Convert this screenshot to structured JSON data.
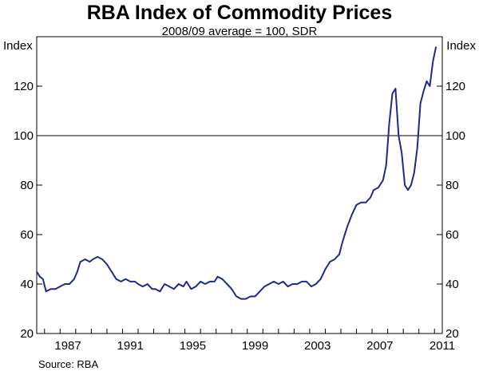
{
  "chart_data": {
    "type": "line",
    "title": "RBA Index of Commodity Prices",
    "subtitle": "2008/09 average = 100, SDR",
    "y_unit_left": "Index",
    "y_unit_right": "Index",
    "source": "Source: RBA",
    "ylim": [
      20,
      140
    ],
    "xlim": [
      1985.5,
      2011.5
    ],
    "y_ticks": [
      20,
      40,
      60,
      80,
      100,
      120
    ],
    "x_tick_labels": [
      "1987",
      "1991",
      "1995",
      "1999",
      "2003",
      "2007",
      "2011"
    ],
    "reference_line": 100,
    "series": [
      {
        "name": "RBA Index of Commodity Prices",
        "color": "#1f2a8c",
        "x": [
          1985.5,
          1985.7,
          1985.9,
          1986.1,
          1986.4,
          1986.7,
          1987.0,
          1987.3,
          1987.6,
          1987.9,
          1988.1,
          1988.3,
          1988.6,
          1988.9,
          1989.1,
          1989.4,
          1989.7,
          1990.0,
          1990.3,
          1990.6,
          1990.9,
          1991.2,
          1991.5,
          1991.8,
          1992.0,
          1992.3,
          1992.6,
          1992.9,
          1993.1,
          1993.4,
          1993.7,
          1994.0,
          1994.3,
          1994.6,
          1994.9,
          1995.1,
          1995.4,
          1995.7,
          1996.0,
          1996.3,
          1996.6,
          1996.9,
          1997.1,
          1997.4,
          1997.7,
          1998.0,
          1998.3,
          1998.6,
          1998.9,
          1999.2,
          1999.5,
          1999.8,
          2000.1,
          2000.4,
          2000.7,
          2001.0,
          2001.3,
          2001.6,
          2001.9,
          2002.2,
          2002.5,
          2002.8,
          2003.1,
          2003.4,
          2003.7,
          2004.0,
          2004.3,
          2004.6,
          2004.9,
          2005.1,
          2005.4,
          2005.7,
          2006.0,
          2006.3,
          2006.6,
          2006.9,
          2007.1,
          2007.4,
          2007.7,
          2007.9,
          2008.1,
          2008.3,
          2008.5,
          2008.7,
          2008.9,
          2009.1,
          2009.3,
          2009.5,
          2009.7,
          2009.9,
          2010.1,
          2010.3,
          2010.5,
          2010.7,
          2010.9,
          2011.1
        ],
        "values": [
          45,
          43,
          42,
          37,
          38,
          38,
          39,
          40,
          40,
          42,
          45,
          49,
          50,
          49,
          50,
          51,
          50,
          48,
          45,
          42,
          41,
          42,
          41,
          41,
          40,
          39,
          40,
          38,
          38,
          37,
          40,
          39,
          38,
          40,
          39,
          41,
          38,
          39,
          41,
          40,
          41,
          41,
          43,
          42,
          40,
          38,
          35,
          34,
          34,
          35,
          35,
          37,
          39,
          40,
          41,
          40,
          41,
          39,
          40,
          40,
          41,
          41,
          39,
          40,
          42,
          46,
          49,
          50,
          52,
          57,
          63,
          68,
          72,
          73,
          73,
          75,
          78,
          79,
          82,
          88,
          105,
          117,
          119,
          100,
          93,
          80,
          78,
          80,
          85,
          95,
          113,
          118,
          122,
          120,
          130,
          136
        ]
      }
    ]
  }
}
